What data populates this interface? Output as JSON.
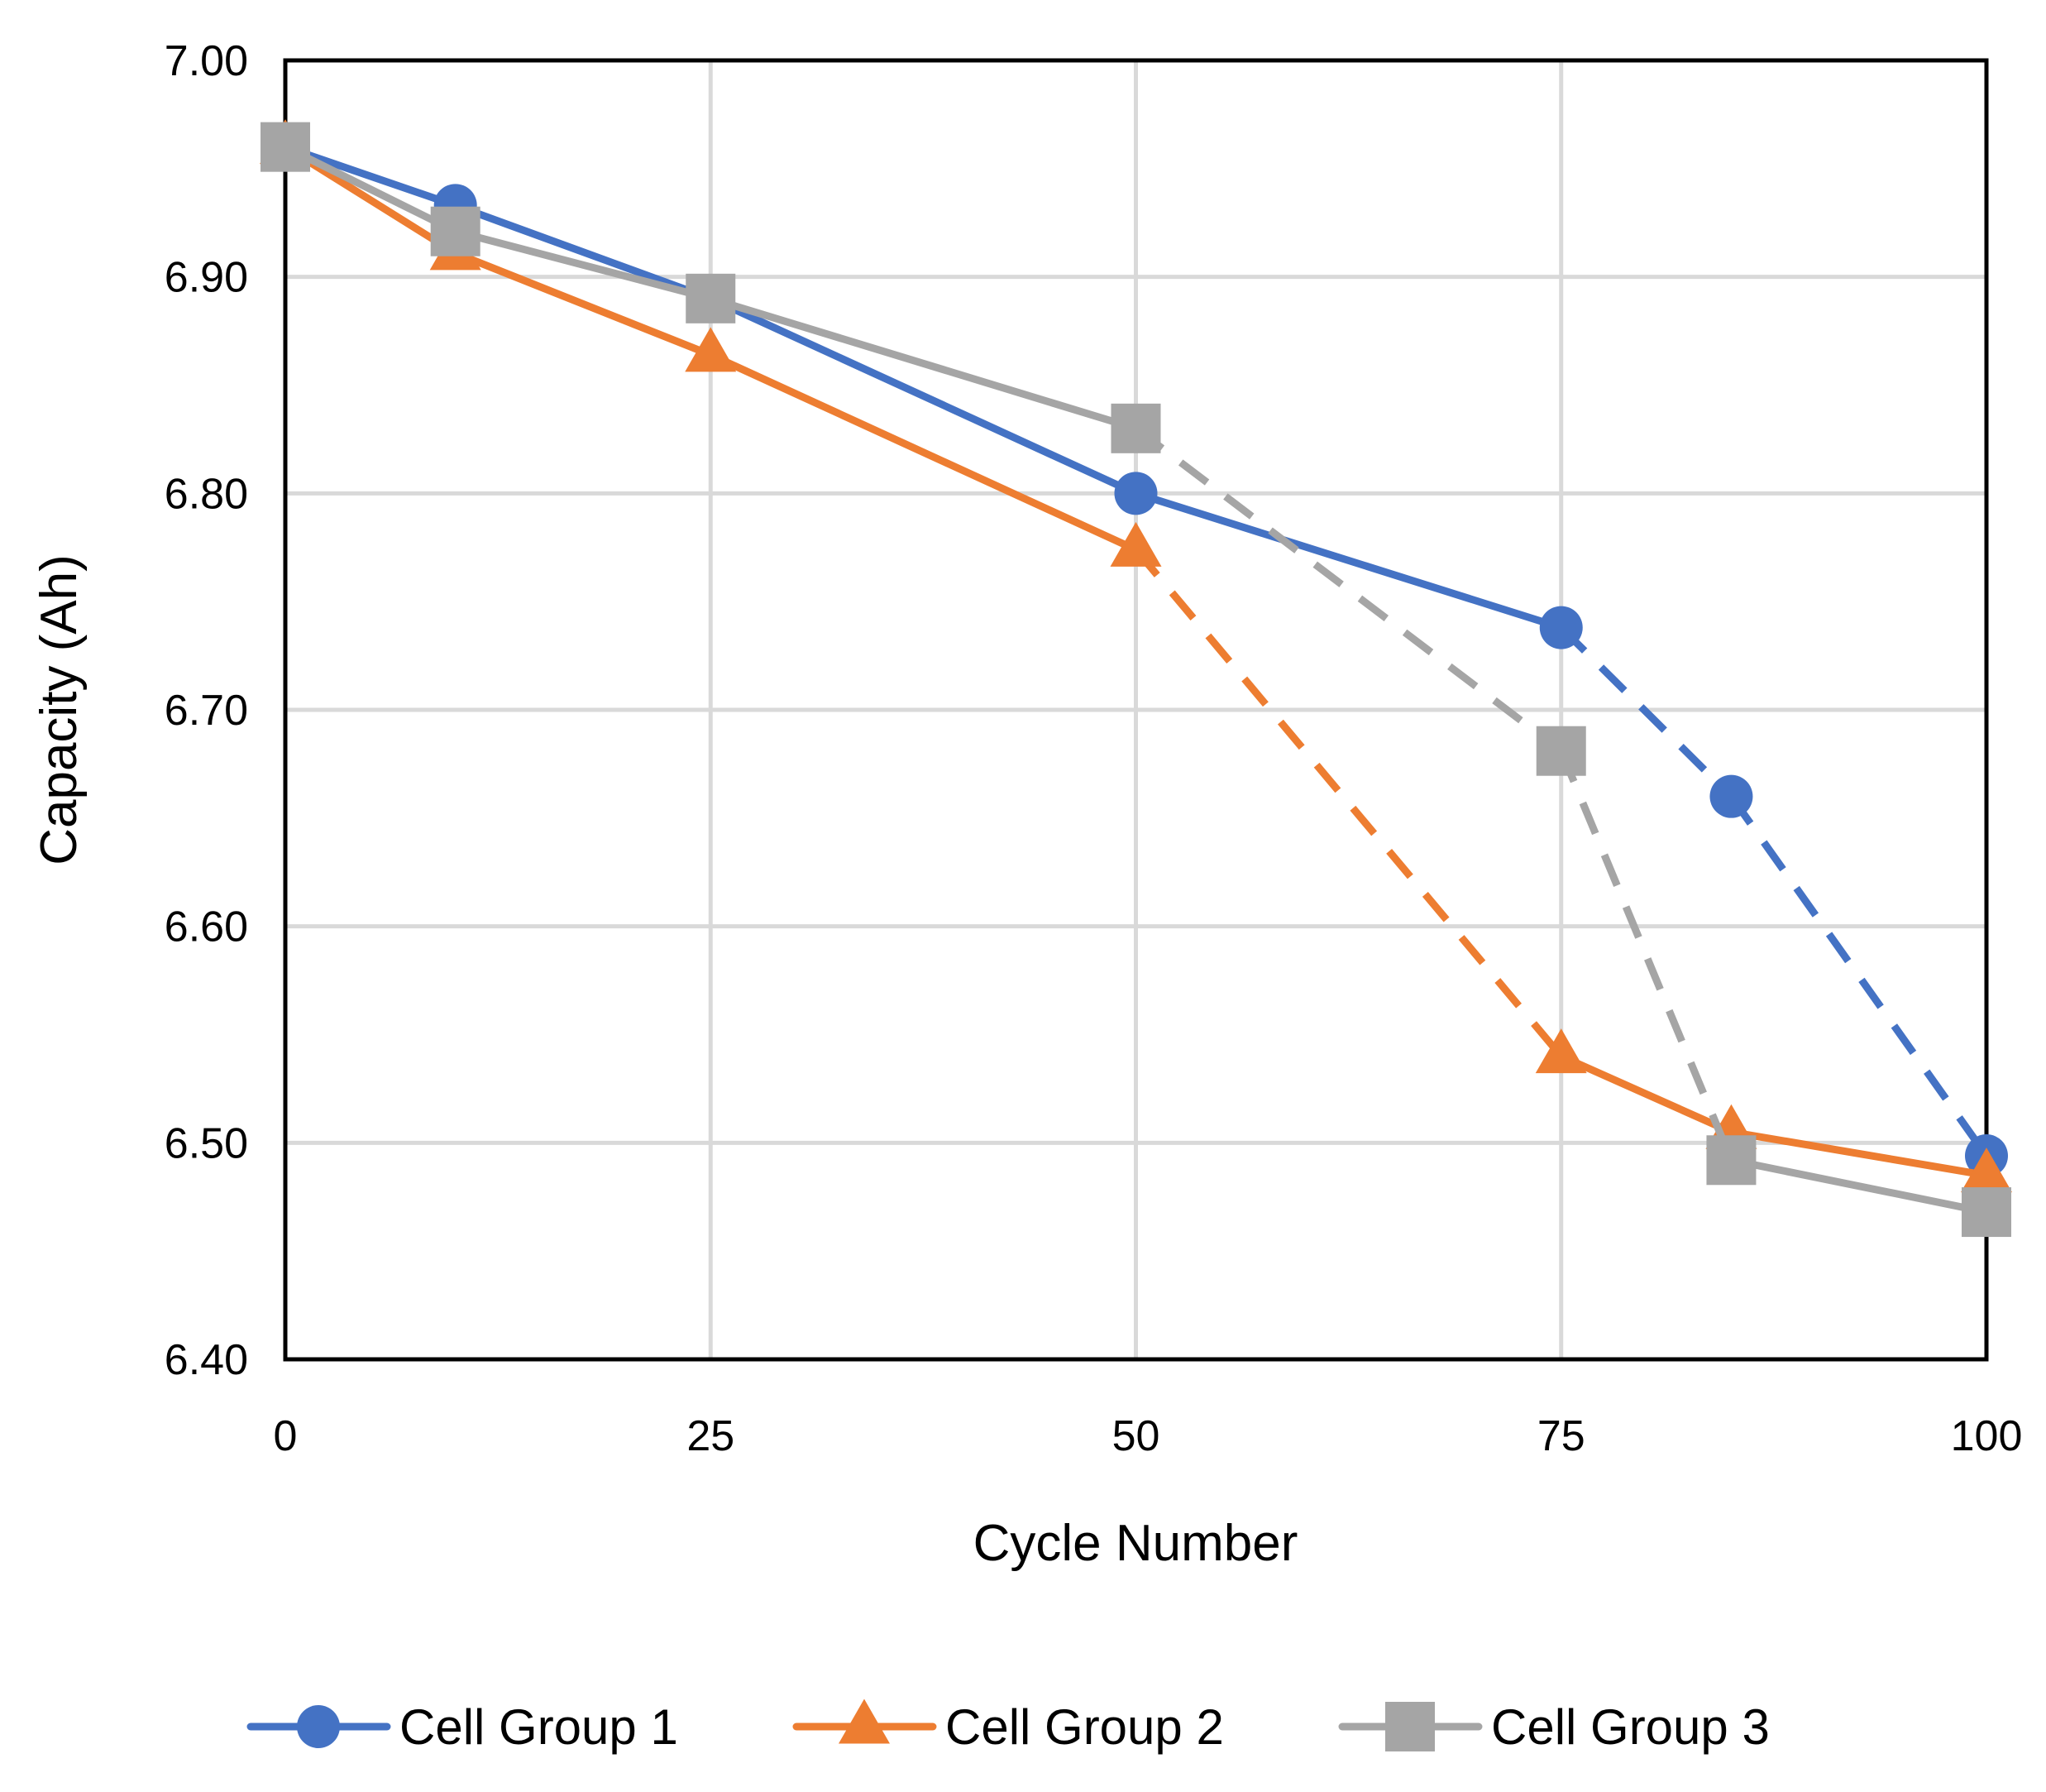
{
  "chart_data": {
    "type": "line",
    "title": "",
    "xlabel": "Cycle Number",
    "ylabel": "Capacity (Ah)",
    "xlim": [
      0,
      100
    ],
    "ylim": [
      6.4,
      7.0
    ],
    "x_ticks": [
      0,
      25,
      50,
      75,
      100
    ],
    "y_ticks": [
      6.4,
      6.5,
      6.6,
      6.7,
      6.8,
      6.9,
      7.0
    ],
    "x_tick_labels": [
      "0",
      "25",
      "50",
      "75",
      "100"
    ],
    "y_tick_labels": [
      "6.40",
      "6.50",
      "6.60",
      "6.70",
      "6.80",
      "6.90",
      "7.00"
    ],
    "grid": true,
    "legend_position": "bottom",
    "series": [
      {
        "name": "Cell Group 1",
        "color": "#4472C4",
        "marker": "circle",
        "points": [
          {
            "x": 0,
            "y": 6.96,
            "segment_to_next": "solid"
          },
          {
            "x": 10,
            "y": 6.933,
            "segment_to_next": "solid"
          },
          {
            "x": 25,
            "y": 6.89,
            "segment_to_next": "solid"
          },
          {
            "x": 50,
            "y": 6.8,
            "segment_to_next": "solid"
          },
          {
            "x": 75,
            "y": 6.738,
            "segment_to_next": "dashed"
          },
          {
            "x": 85,
            "y": 6.66,
            "segment_to_next": "dashed"
          },
          {
            "x": 100,
            "y": 6.494,
            "segment_to_next": null
          }
        ]
      },
      {
        "name": "Cell Group 2",
        "color": "#ED7D31",
        "marker": "triangle",
        "points": [
          {
            "x": 0,
            "y": 6.96,
            "segment_to_next": "solid"
          },
          {
            "x": 10,
            "y": 6.911,
            "segment_to_next": "solid"
          },
          {
            "x": 25,
            "y": 6.864,
            "segment_to_next": "solid"
          },
          {
            "x": 50,
            "y": 6.774,
            "segment_to_next": "dashed"
          },
          {
            "x": 75,
            "y": 6.54,
            "segment_to_next": "solid"
          },
          {
            "x": 85,
            "y": 6.505,
            "segment_to_next": "solid"
          },
          {
            "x": 100,
            "y": 6.485,
            "segment_to_next": null
          }
        ]
      },
      {
        "name": "Cell Group 3",
        "color": "#A5A5A5",
        "marker": "square",
        "points": [
          {
            "x": 0,
            "y": 6.96,
            "segment_to_next": "solid"
          },
          {
            "x": 10,
            "y": 6.921,
            "segment_to_next": "solid"
          },
          {
            "x": 25,
            "y": 6.89,
            "segment_to_next": "solid"
          },
          {
            "x": 50,
            "y": 6.83,
            "segment_to_next": "dashed"
          },
          {
            "x": 75,
            "y": 6.681,
            "segment_to_next": "dashed"
          },
          {
            "x": 85,
            "y": 6.492,
            "segment_to_next": "solid"
          },
          {
            "x": 100,
            "y": 6.468,
            "segment_to_next": null
          }
        ]
      }
    ]
  }
}
